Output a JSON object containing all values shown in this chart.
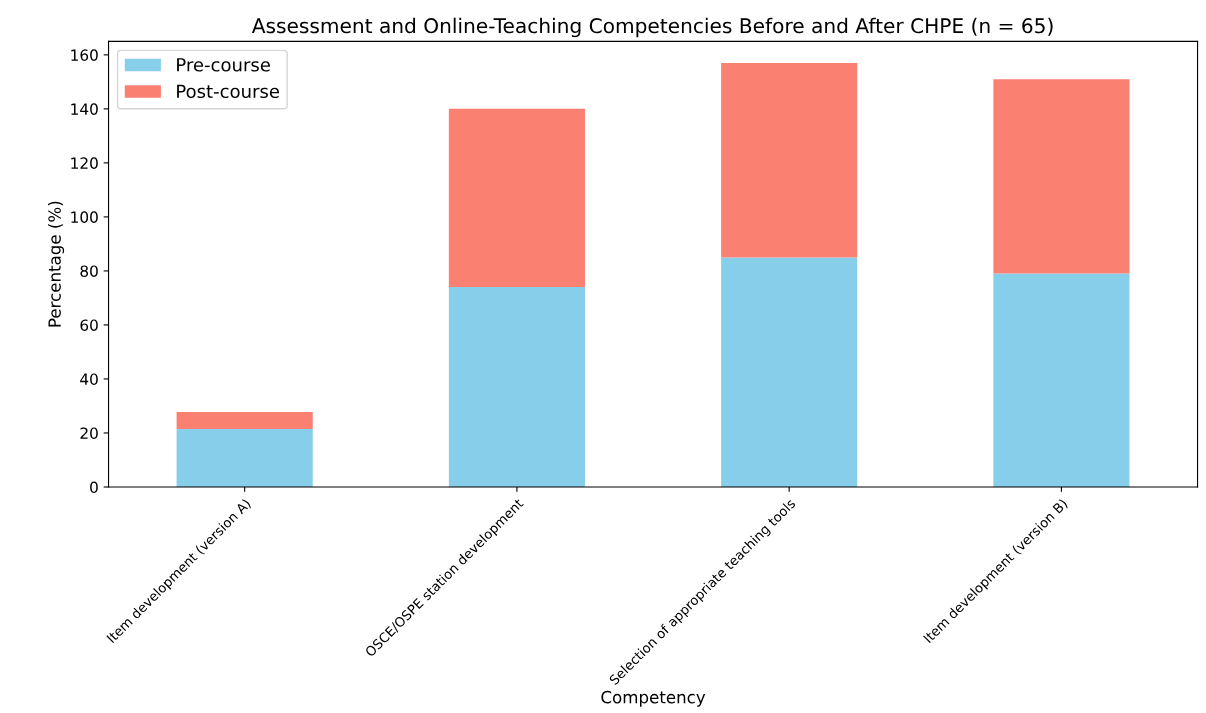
{
  "chart_data": {
    "type": "bar",
    "title": "Assessment and Online-Teaching Competencies Before and After CHPE (n = 65)",
    "xlabel": "Competency",
    "ylabel": "Percentage (%)",
    "categories": [
      "Item development (version A)",
      "OSCE/OSPE station development",
      "Selection of appropriate teaching tools",
      "Item development (version B)"
    ],
    "stacked": true,
    "series": [
      {
        "name": "Pre-course",
        "color": "#87ceeb",
        "values": [
          21.5,
          74,
          85,
          79
        ]
      },
      {
        "name": "Post-course",
        "color": "#fa8072",
        "values": [
          6.3,
          66,
          72,
          72
        ]
      }
    ],
    "ylim": [
      0,
      165
    ],
    "yticks": [
      0,
      20,
      40,
      60,
      80,
      100,
      120,
      140,
      160
    ],
    "legend": "top left",
    "grid": false
  }
}
